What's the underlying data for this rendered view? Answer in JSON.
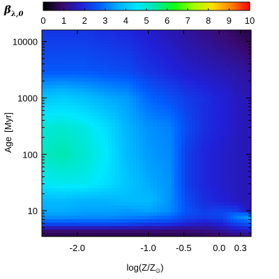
{
  "chart_data": {
    "type": "heatmap",
    "colorbar": {
      "label_main": "β",
      "label_sub": "λ,0",
      "range": [
        0,
        10
      ],
      "tick_labels": [
        "0",
        "1",
        "2",
        "3",
        "4",
        "5",
        "6",
        "7",
        "8",
        "9",
        "10"
      ],
      "colormap": [
        "#000000",
        "#3a0a6e",
        "#2020d8",
        "#0060ff",
        "#00b0ff",
        "#00e8ff",
        "#00e8a0",
        "#10ff10",
        "#a0ff00",
        "#ffe000",
        "#ff8000",
        "#ff0000"
      ]
    },
    "x_axis": {
      "label_main": "log(Z/Z",
      "label_close": ")",
      "range": [
        -2.5,
        0.45
      ],
      "ticks": [
        -2.0,
        -1.0,
        -0.5,
        0.0,
        0.3
      ],
      "tick_labels": [
        "-2.0",
        "-1.0",
        "-0.5",
        "0.0",
        "0.3"
      ]
    },
    "y_axis": {
      "label_main": "Age",
      "label_bracket": "[Myr]",
      "scale": "log",
      "range": [
        3.5,
        16000
      ],
      "ticks": [
        10,
        100,
        1000,
        10000
      ],
      "tick_labels": [
        "10",
        "100",
        "1000",
        "10000"
      ]
    },
    "grid": {
      "x": [
        -2.5,
        -2.2,
        -1.9,
        -1.6,
        -1.3,
        -1.0,
        -0.7,
        -0.45,
        -0.2,
        0.05,
        0.25,
        0.45
      ],
      "y": [
        3.5,
        4.5,
        6,
        8,
        10,
        15,
        30,
        100,
        300,
        1000,
        3000,
        16000
      ],
      "values": [
        [
          0.6,
          0.6,
          0.6,
          0.6,
          0.6,
          0.6,
          0.6,
          0.6,
          0.7,
          0.8,
          0.9,
          1.0
        ],
        [
          1.0,
          1.0,
          1.0,
          1.0,
          1.0,
          1.0,
          1.0,
          1.0,
          1.1,
          1.3,
          1.6,
          1.7
        ],
        [
          2.6,
          2.6,
          2.6,
          2.6,
          2.5,
          2.3,
          2.2,
          1.9,
          1.7,
          1.9,
          2.4,
          2.7
        ],
        [
          3.4,
          3.4,
          3.3,
          3.3,
          3.2,
          3.1,
          2.9,
          2.4,
          2.3,
          2.4,
          3.2,
          3.6
        ],
        [
          3.6,
          3.6,
          3.5,
          3.5,
          3.4,
          3.5,
          3.2,
          2.5,
          2.2,
          2.3,
          2.2,
          1.3
        ],
        [
          3.8,
          3.8,
          3.7,
          3.7,
          3.8,
          3.8,
          3.3,
          2.4,
          2.0,
          1.8,
          1.6,
          1.5
        ],
        [
          4.6,
          4.7,
          4.7,
          4.4,
          4.0,
          3.6,
          3.3,
          2.2,
          1.9,
          1.7,
          1.6,
          1.5
        ],
        [
          5.1,
          5.3,
          5.0,
          4.6,
          3.8,
          3.4,
          3.2,
          2.2,
          1.9,
          1.7,
          1.6,
          1.5
        ],
        [
          4.9,
          5.0,
          4.8,
          4.4,
          3.7,
          3.3,
          3.1,
          2.4,
          2.0,
          1.8,
          1.6,
          1.5
        ],
        [
          4.0,
          4.1,
          3.9,
          3.6,
          3.4,
          2.8,
          2.5,
          2.2,
          2.0,
          1.8,
          1.6,
          1.5
        ],
        [
          2.6,
          2.6,
          2.6,
          2.5,
          2.4,
          2.1,
          1.9,
          1.7,
          1.6,
          1.5,
          1.4,
          1.2
        ],
        [
          2.1,
          2.1,
          2.1,
          2.0,
          1.9,
          1.7,
          1.5,
          1.3,
          1.1,
          0.9,
          0.7,
          0.5
        ]
      ]
    }
  }
}
